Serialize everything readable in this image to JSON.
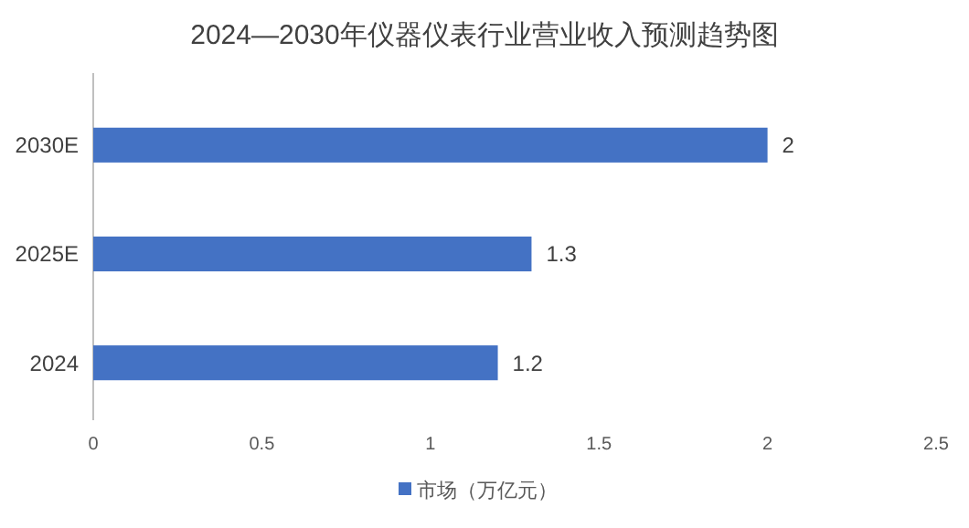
{
  "chart_data": {
    "type": "bar",
    "orientation": "horizontal",
    "title": "2024—2030年仪器仪表行业营业收入预测趋势图",
    "categories": [
      "2030E",
      "2025E",
      "2024"
    ],
    "series": [
      {
        "name": "市场（万亿元）",
        "color": "#4472c4",
        "values": [
          2,
          1.3,
          1.2
        ]
      }
    ],
    "xlim": [
      0,
      2.5
    ],
    "xticks": [
      0,
      0.5,
      1,
      1.5,
      2,
      2.5
    ],
    "data_labels": true,
    "legend": "bottom",
    "grid": false
  }
}
